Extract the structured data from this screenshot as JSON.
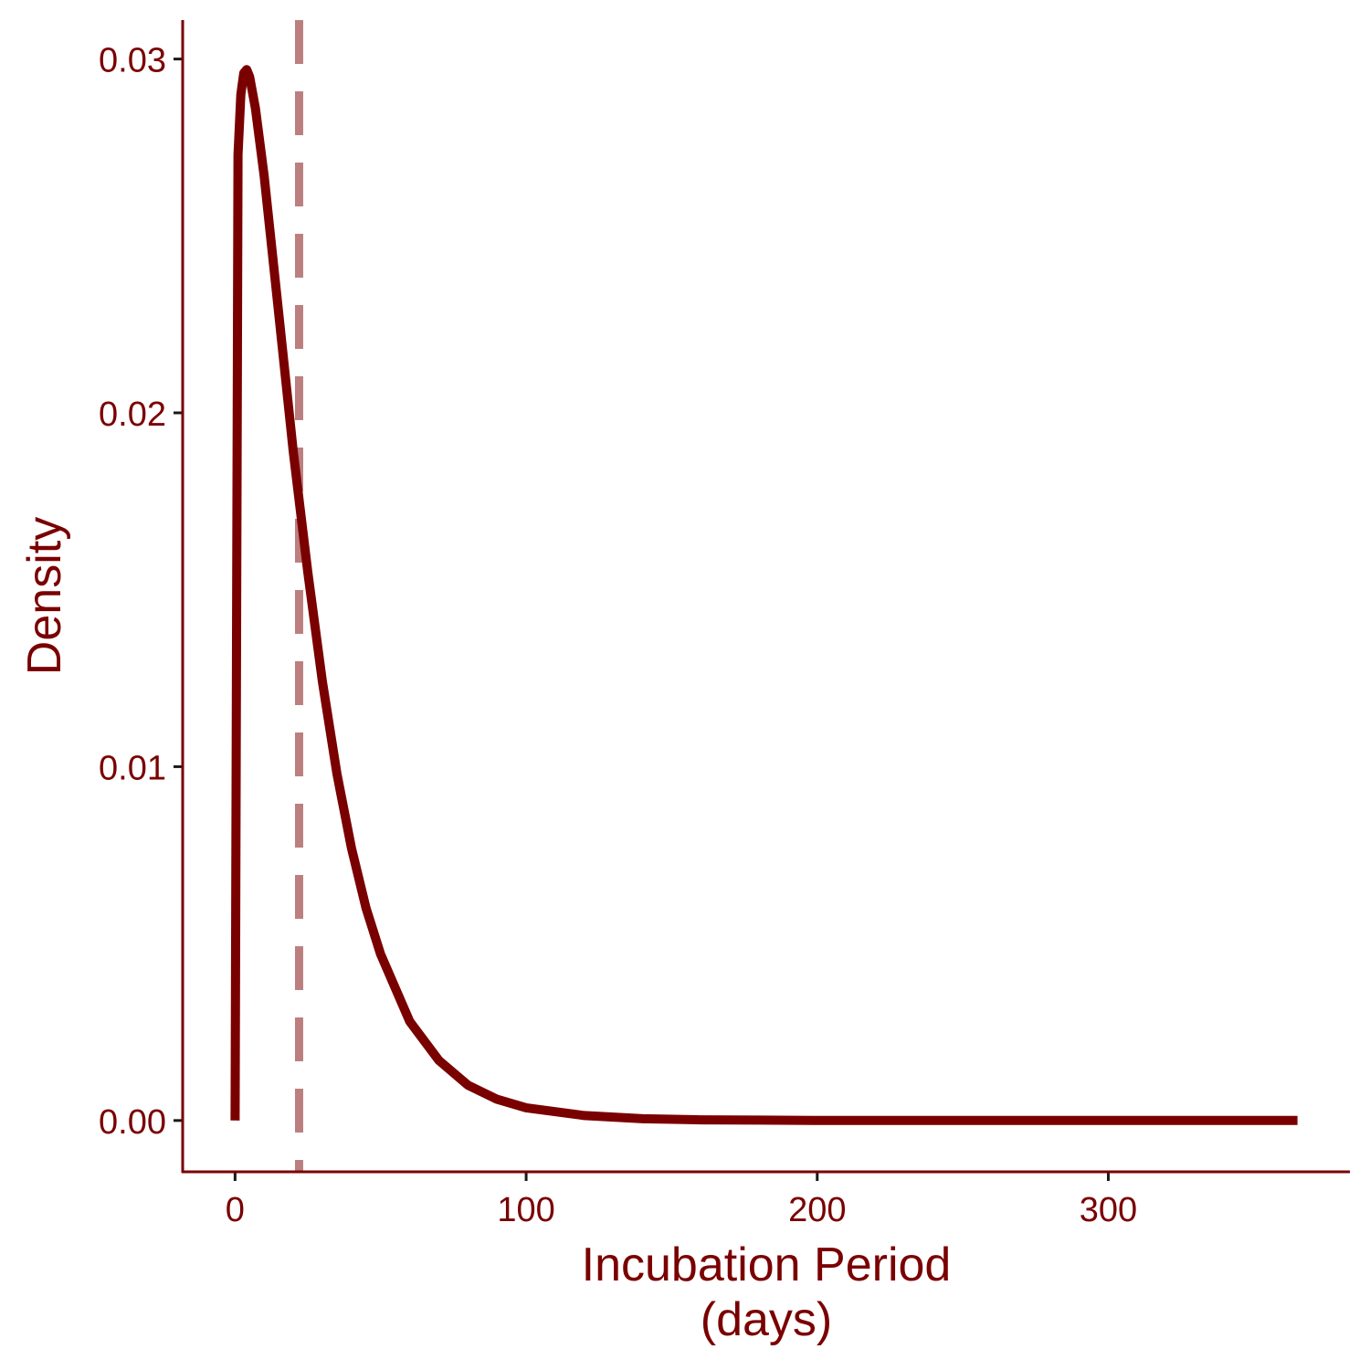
{
  "chart_data": {
    "type": "line",
    "title": "",
    "xlabel_lines": [
      "Incubation Period",
      "(days)"
    ],
    "ylabel": "Density",
    "xlim": [
      -18,
      383
    ],
    "ylim": [
      -0.00145,
      0.0311
    ],
    "x_ticks": [
      0,
      100,
      200,
      300
    ],
    "x_tick_labels": [
      "0",
      "100",
      "200",
      "300"
    ],
    "y_ticks": [
      0,
      0.01,
      0.02,
      0.03
    ],
    "y_tick_labels": [
      "0.00",
      "0.01",
      "0.02",
      "0.03"
    ],
    "grid": false,
    "legend": "none",
    "series": [
      {
        "x": [
          0,
          1,
          2,
          3,
          4,
          5,
          7,
          10,
          15,
          20,
          25,
          30,
          35,
          40,
          45,
          50,
          60,
          70,
          80,
          90,
          100,
          120,
          140,
          160,
          180,
          200,
          250,
          300,
          365
        ],
        "values": [
          0,
          0.0273,
          0.029,
          0.0296,
          0.0297,
          0.0295,
          0.0286,
          0.0267,
          0.0228,
          0.0189,
          0.0155,
          0.0124,
          0.0098,
          0.0077,
          0.006,
          0.0047,
          0.0028,
          0.0017,
          0.001,
          0.0006,
          0.00036,
          0.00014,
          5e-05,
          2e-05,
          1e-05,
          0,
          0,
          0,
          0
        ]
      }
    ],
    "reference_line": {
      "orientation": "vertical",
      "x": 22,
      "style": "dashed"
    },
    "colors": {
      "curve": "#7a0000",
      "reference_line": "#7a0000",
      "reference_opacity": 0.5,
      "axis": "#7a0000",
      "ticks": "#1a1a1a",
      "text": "#7a0000"
    }
  }
}
